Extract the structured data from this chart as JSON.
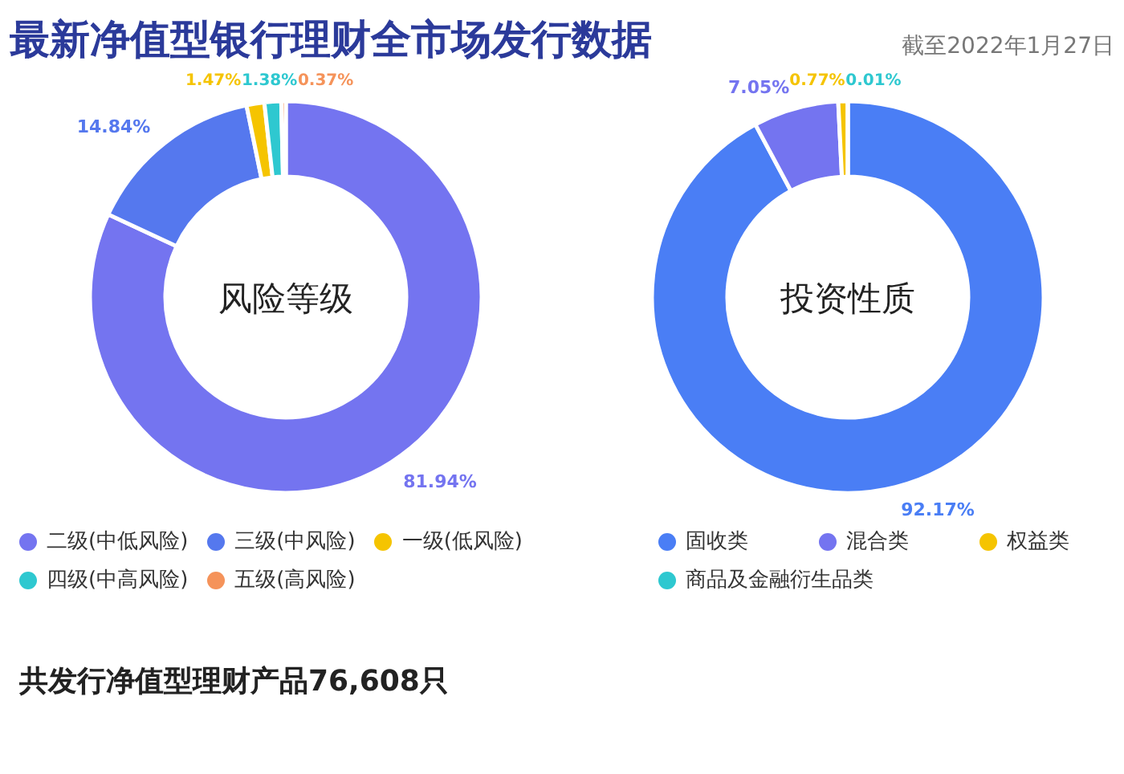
{
  "chart_data": [
    {
      "type": "donut",
      "title": "最新净值型银行理财全市场发行数据",
      "annotations": [
        "风险等级",
        "共发行净值型理财产品76,608只"
      ],
      "categories": [
        "二级(中低风险)",
        "三级(中风险)",
        "一级(低风险)",
        "四级(中高风险)",
        "五级(高风险)"
      ],
      "values": [
        81.94,
        14.84,
        1.47,
        1.38,
        0.37
      ],
      "value_labels": [
        "81.94%",
        "14.84%",
        "1.47%",
        "1.38%",
        "0.37%"
      ],
      "colors": [
        "#7474f0",
        "#5578ee",
        "#f5c400",
        "#2ec8d0",
        "#f5935a"
      ],
      "legend": "bottom"
    },
    {
      "type": "donut",
      "subtitle": "截至2022年1月27日",
      "annotations": [
        "投资性质"
      ],
      "categories": [
        "固收类",
        "混合类",
        "权益类",
        "商品及金融衍生品类"
      ],
      "values": [
        92.17,
        7.05,
        0.77,
        0.01
      ],
      "value_labels": [
        "92.17%",
        "7.05%",
        "0.77%",
        "0.01%"
      ],
      "colors": [
        "#4a7ef5",
        "#7474f0",
        "#f5c400",
        "#2ec8d0"
      ],
      "legend": "bottom"
    }
  ]
}
